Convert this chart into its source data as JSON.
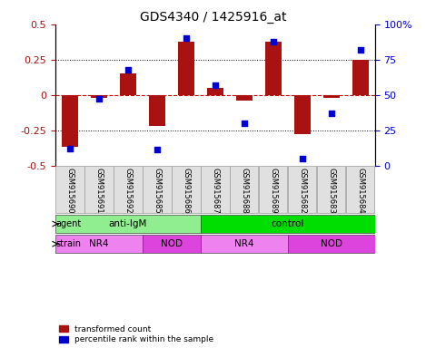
{
  "title": "GDS4340 / 1425916_at",
  "samples": [
    "GSM915690",
    "GSM915691",
    "GSM915692",
    "GSM915685",
    "GSM915686",
    "GSM915687",
    "GSM915688",
    "GSM915689",
    "GSM915682",
    "GSM915683",
    "GSM915684"
  ],
  "transformed_count": [
    -0.37,
    -0.02,
    0.15,
    -0.22,
    0.38,
    0.05,
    -0.04,
    0.38,
    -0.28,
    -0.02,
    0.25
  ],
  "percentile_rank": [
    12,
    47,
    68,
    11,
    90,
    57,
    30,
    88,
    5,
    37,
    82
  ],
  "ylim": [
    -0.5,
    0.5
  ],
  "yticks_left": [
    -0.5,
    -0.25,
    0,
    0.25,
    0.5
  ],
  "yticks_right": [
    0,
    25,
    50,
    75,
    100
  ],
  "bar_color": "#aa1111",
  "dot_color": "#0000cc",
  "zero_line_color": "#cc0000",
  "agent_groups": [
    {
      "label": "anti-IgM",
      "start": 0,
      "end": 5,
      "color": "#90ee90"
    },
    {
      "label": "control",
      "start": 5,
      "end": 11,
      "color": "#00dd00"
    }
  ],
  "strain_groups": [
    {
      "label": "NR4",
      "start": 0,
      "end": 3,
      "color": "#ee82ee"
    },
    {
      "label": "NOD",
      "start": 3,
      "end": 5,
      "color": "#dd44dd"
    },
    {
      "label": "NR4",
      "start": 5,
      "end": 8,
      "color": "#ee82ee"
    },
    {
      "label": "NOD",
      "start": 8,
      "end": 11,
      "color": "#dd44dd"
    }
  ],
  "agent_label": "agent",
  "strain_label": "strain",
  "legend_items": [
    {
      "label": "transformed count",
      "color": "#aa1111"
    },
    {
      "label": "percentile rank within the sample",
      "color": "#0000cc"
    }
  ]
}
